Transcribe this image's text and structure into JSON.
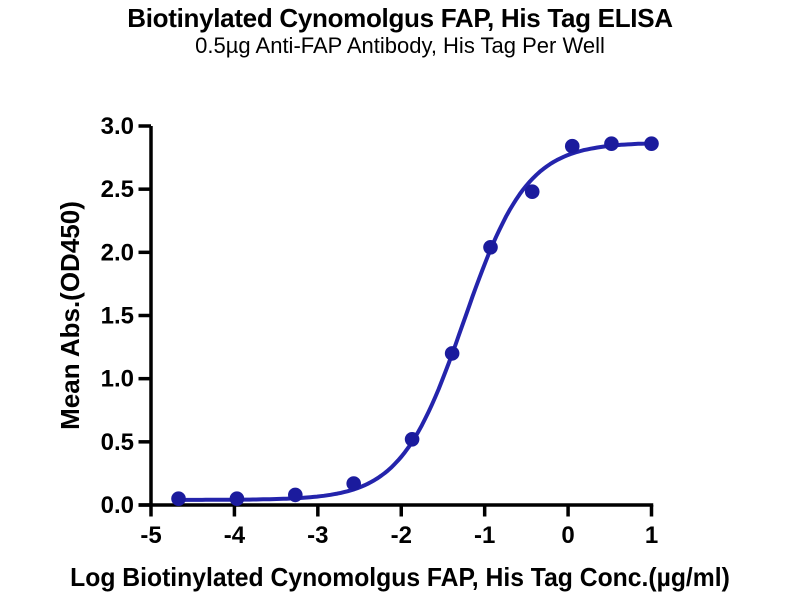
{
  "page": {
    "background": "#ffffff"
  },
  "chart_data": {
    "type": "scatter",
    "title": "Biotinylated Cynomolgus FAP, His Tag ELISA",
    "subtitle": "0.5µg Anti-FAP Antibody, His Tag Per Well",
    "xlabel": "Log Biotinylated Cynomolgus FAP, His Tag Conc.(µg/ml)",
    "ylabel": "Mean Abs.(OD450)",
    "xlim": [
      -5,
      1
    ],
    "ylim": [
      0,
      3
    ],
    "x_ticks": [
      -5,
      -4,
      -3,
      -2,
      -1,
      0,
      1
    ],
    "y_ticks": [
      0,
      0.5,
      1,
      1.5,
      2,
      2.5,
      3
    ],
    "grid": false,
    "legend": null,
    "series": [
      {
        "name": "Biotinylated Cynomolgus FAP, His Tag",
        "marker": "circle",
        "x": [
          -4.67,
          -3.97,
          -3.27,
          -2.57,
          -1.87,
          -1.39,
          -0.93,
          -0.43,
          0.05,
          0.52,
          1.0
        ],
        "y": [
          0.05,
          0.05,
          0.08,
          0.17,
          0.52,
          1.2,
          2.04,
          2.48,
          2.84,
          2.86,
          2.86
        ]
      }
    ],
    "fit_curve": {
      "model": "4PL sigmoidal",
      "bottom": 0.04,
      "top": 2.87,
      "log_ec50": -1.25,
      "hill_slope": 1.15,
      "x_start": -4.67,
      "x_end": 1.0
    },
    "colors": {
      "marker": "#1B1B9D",
      "curve": "#2424AC",
      "axis": "#000000",
      "text": "#000000"
    }
  }
}
